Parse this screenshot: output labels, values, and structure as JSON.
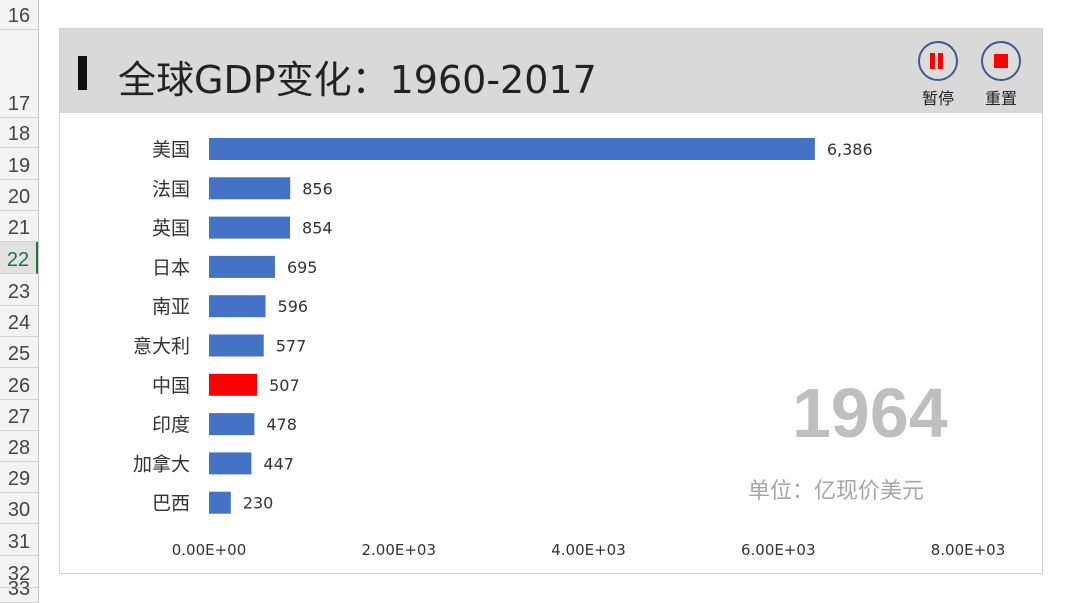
{
  "sheet": {
    "rows": [
      "16",
      "17",
      "18",
      "19",
      "20",
      "21",
      "22",
      "23",
      "24",
      "25",
      "26",
      "27",
      "28",
      "29",
      "30",
      "31",
      "32",
      "33"
    ],
    "active_row": "22"
  },
  "controls": {
    "pause_label": "暂停",
    "reset_label": "重置"
  },
  "colors": {
    "header_band": "#d9d9d9",
    "bar_default": "#4472c4",
    "bar_highlight": "#ff0000",
    "control_glyph": "#ff0000",
    "year_text": "#bfbfbf"
  },
  "chart_data": {
    "type": "bar",
    "orientation": "horizontal",
    "title": "全球GDP变化：1960-2017",
    "year": "1964",
    "unit": "单位：亿现价美元",
    "categories": [
      "美国",
      "法国",
      "英国",
      "日本",
      "南亚",
      "意大利",
      "中国",
      "印度",
      "加拿大",
      "巴西"
    ],
    "values": [
      6386,
      856,
      854,
      695,
      596,
      577,
      507,
      478,
      447,
      230
    ],
    "value_labels": [
      "6,386",
      "856",
      "854",
      "695",
      "596",
      "577",
      "507",
      "478",
      "447",
      "230"
    ],
    "highlight_category": "中国",
    "xlim": [
      0,
      8000
    ],
    "xticks": [
      0,
      2000,
      4000,
      6000,
      8000
    ],
    "xtick_labels": [
      "0.00E+00",
      "2.00E+03",
      "4.00E+03",
      "6.00E+03",
      "8.00E+03"
    ],
    "grid": false,
    "legend": false
  }
}
